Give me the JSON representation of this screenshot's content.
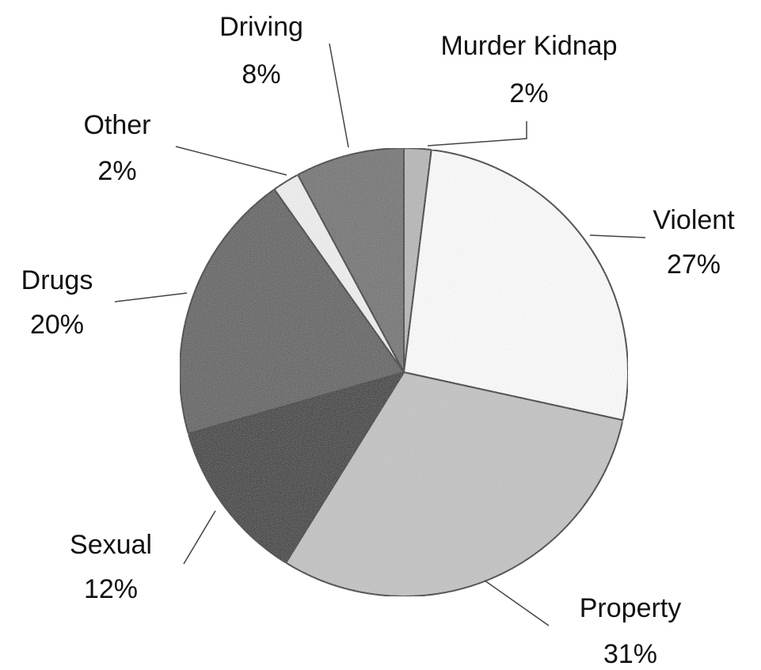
{
  "chart_data": {
    "type": "pie",
    "categories": [
      "Murder Kidnap",
      "Violent",
      "Property",
      "Sexual",
      "Drugs",
      "Other",
      "Driving"
    ],
    "values": [
      2,
      27,
      31,
      12,
      20,
      2,
      8
    ],
    "value_labels": [
      "2%",
      "27%",
      "31%",
      "12%",
      "20%",
      "2%",
      "8%"
    ],
    "colors": [
      "#b8b8b8",
      "#ffffff",
      "#c4c4c4",
      "#262626",
      "#5a5a5a",
      "#f2f2f2",
      "#6e6e6e"
    ]
  }
}
